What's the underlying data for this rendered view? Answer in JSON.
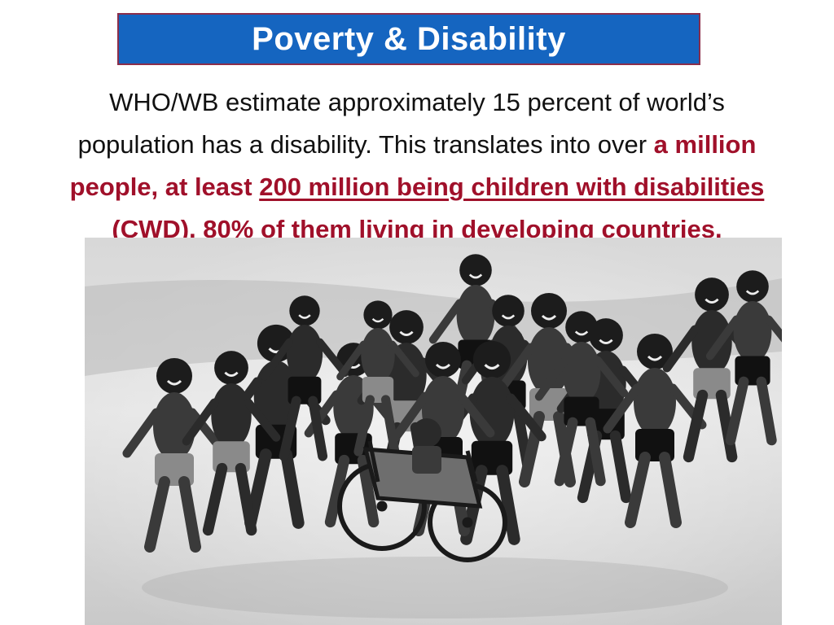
{
  "slide": {
    "title": "Poverty & Disability",
    "body": {
      "line1": "WHO/WB estimate approximately 15 percent of world’s",
      "line2_plain": "population has a disability. This translates into over ",
      "line2_emph": "a million",
      "line3_emph": "people, at least ",
      "line3_underlined": "200 million being children with disabilities",
      "line4_emph": "(CWD), 80% of them living in developing countries."
    },
    "photo": {
      "style": "black-and-white",
      "child_count": 17
    },
    "colors": {
      "title_bg": "#1565c0",
      "title_border": "#8b2e4a",
      "title_text": "#ffffff",
      "emphasis": "#a0102a",
      "body_text": "#111111"
    }
  }
}
